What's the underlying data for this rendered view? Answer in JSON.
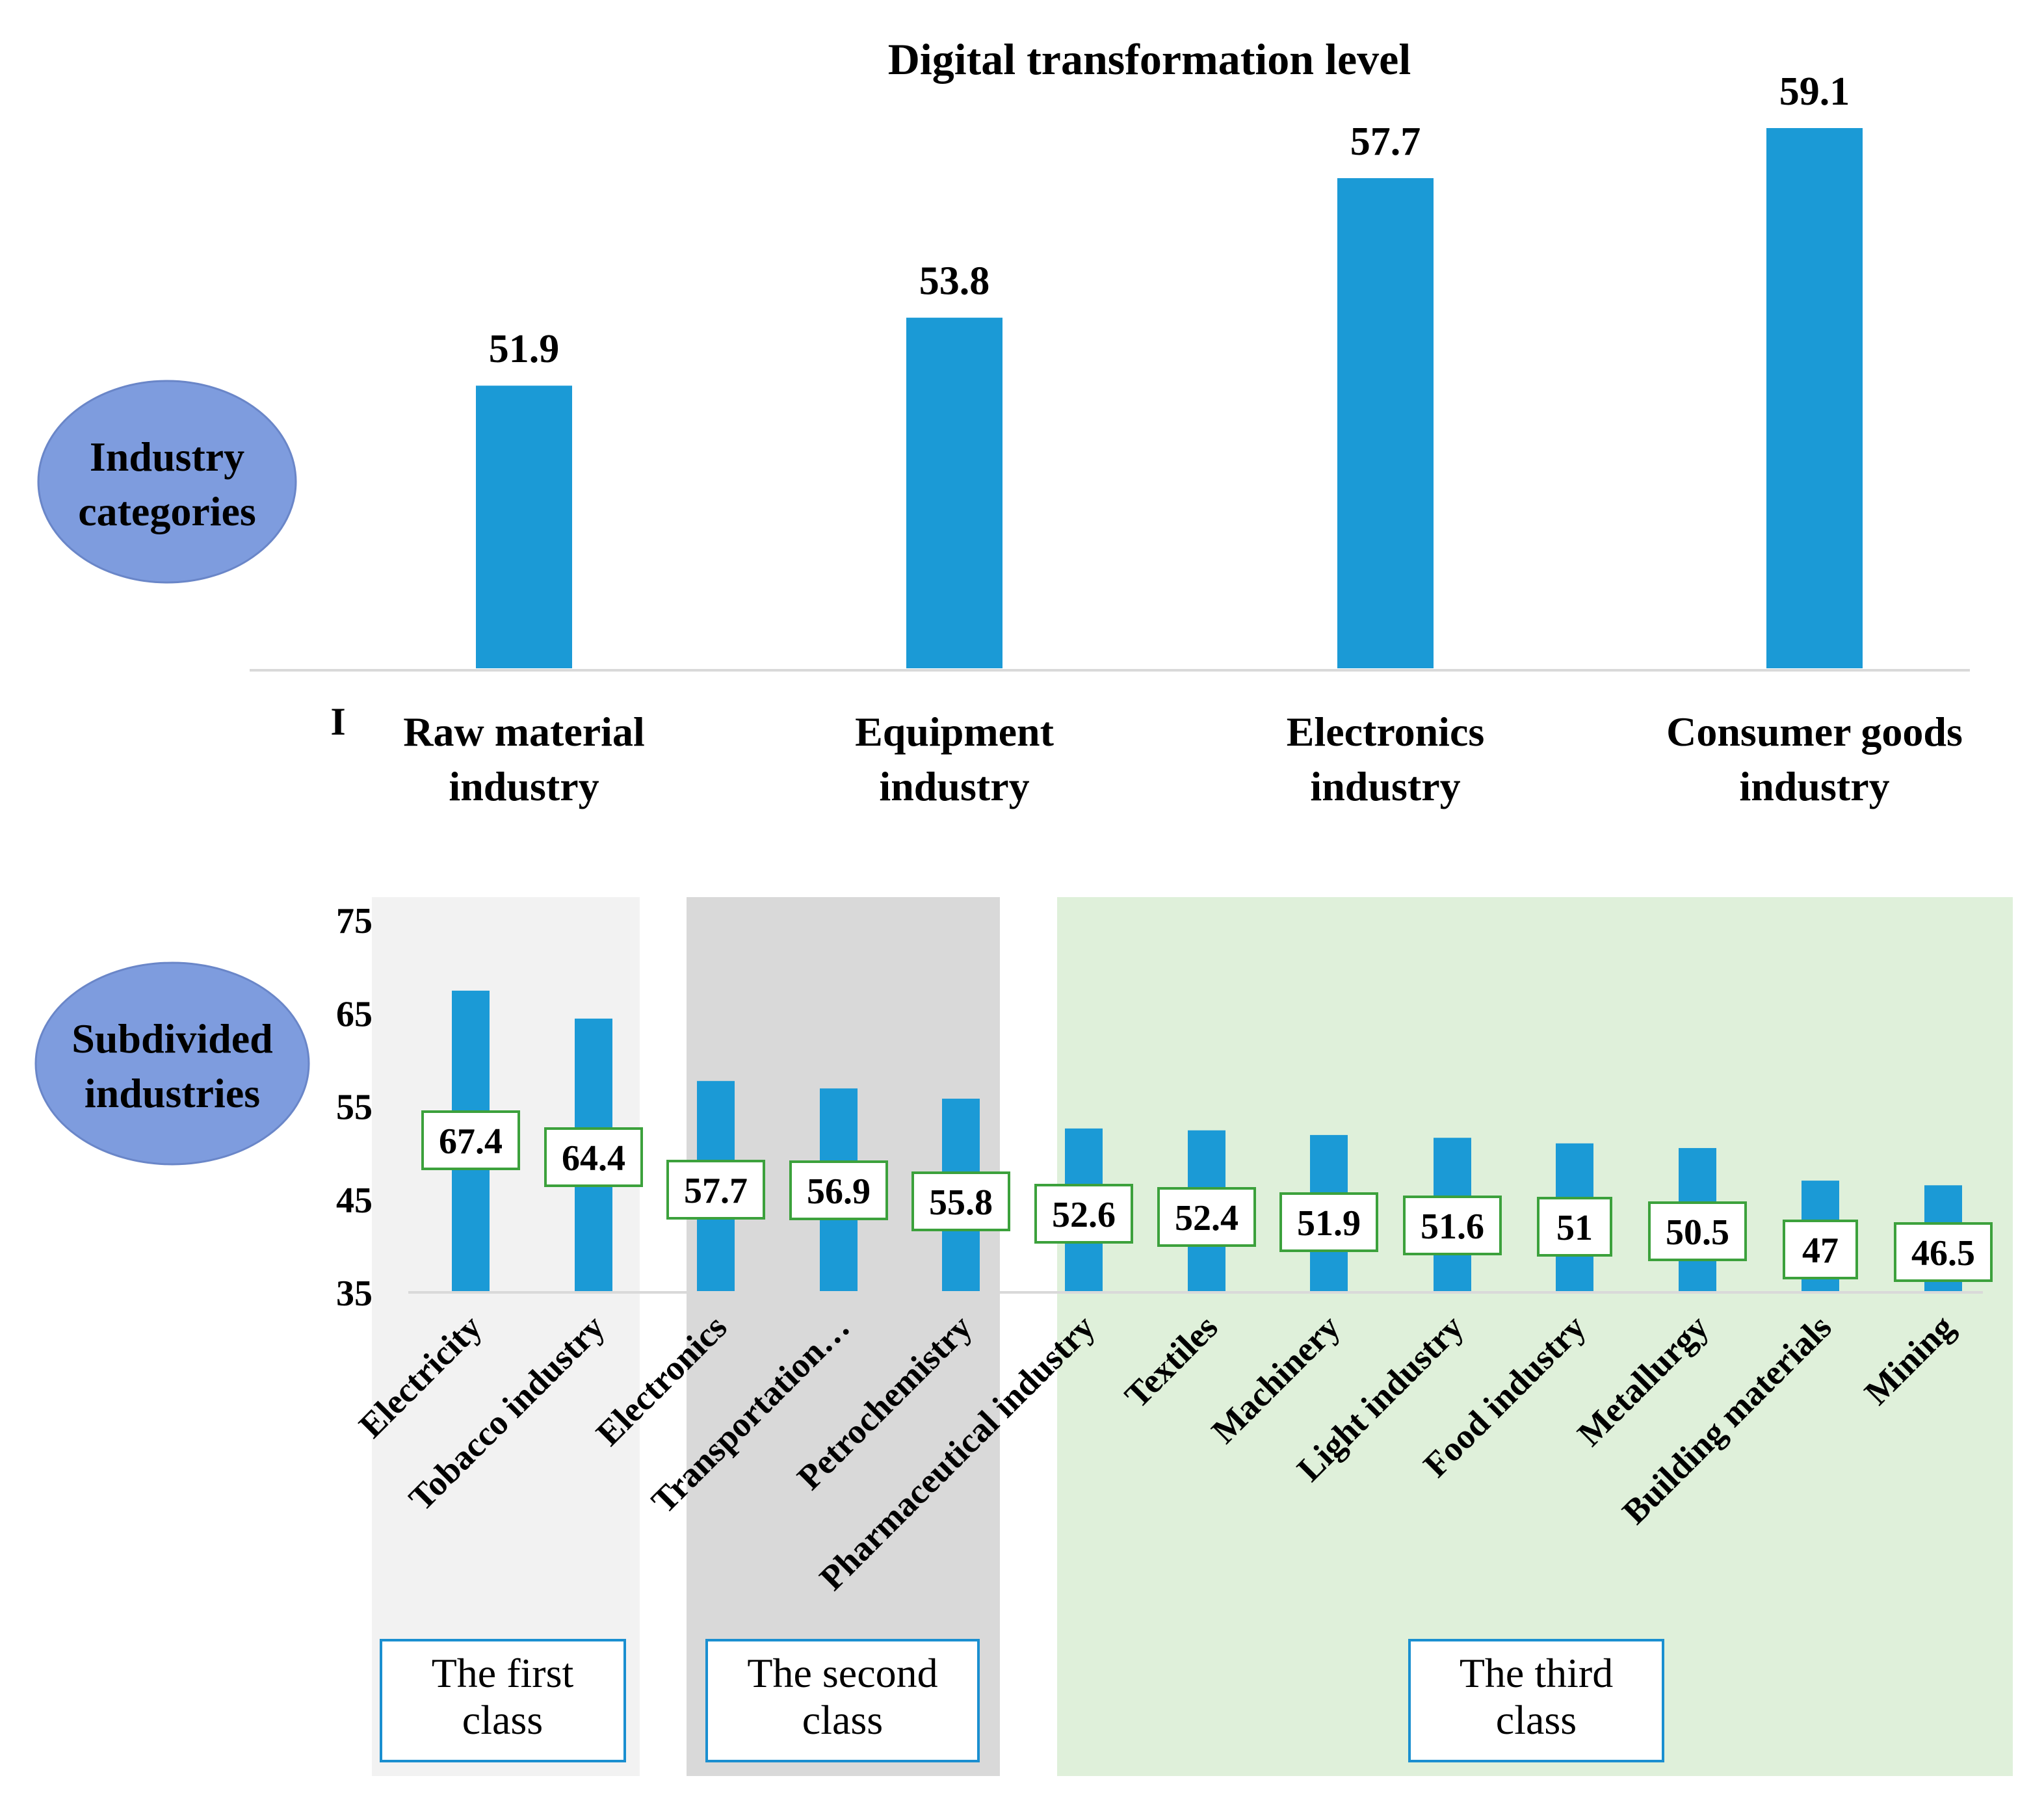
{
  "colors": {
    "bar": "#1B9AD6",
    "ellipse": "#7E9CDE",
    "class1_bg": "#F2F2F2",
    "class2_bg": "#D9D9D9",
    "class3_bg": "#DFF0DA",
    "label_border": "#3CA13C",
    "class_box_border": "#1A8FD0"
  },
  "chart_data": [
    {
      "type": "bar",
      "title": "Digital transformation  level",
      "side_label": "Industry categories",
      "axis_stray_tick": "I",
      "categories": [
        "Raw material industry",
        "Equipment industry",
        "Electronics industry",
        "Consumer goods industry"
      ],
      "values": [
        51.9,
        53.8,
        57.7,
        59.1
      ],
      "value_labels": [
        "51.9",
        "53.8",
        "57.7",
        "59.1"
      ],
      "ylim": [
        44,
        60
      ],
      "grid": false,
      "legend": "none"
    },
    {
      "type": "bar",
      "side_label": "Subdivided industries",
      "categories": [
        "Electricity",
        "Tobacco industry",
        "Electronics",
        "Transportation…",
        "Petrochemistry",
        "Pharmaceutical industry",
        "Textiles",
        "Machinery",
        "Light industry",
        "Food industry",
        "Metallurgy",
        "Building materials",
        "Mining"
      ],
      "values": [
        67.4,
        64.4,
        57.7,
        56.9,
        55.8,
        52.6,
        52.4,
        51.9,
        51.6,
        51,
        50.5,
        47,
        46.5
      ],
      "value_labels": [
        "67.4",
        "64.4",
        "57.7",
        "56.9",
        "55.8",
        "52.6",
        "52.4",
        "51.9",
        "51.6",
        "51",
        "50.5",
        "47",
        "46.5"
      ],
      "ylim": [
        35,
        75
      ],
      "yticks": [
        "75",
        "65",
        "55",
        "45",
        "35"
      ],
      "ytick_values": [
        75,
        65,
        55,
        45,
        35
      ],
      "grid": false,
      "legend": "none",
      "classes": [
        {
          "label": "The first class",
          "members": [
            "Electricity",
            "Tobacco industry"
          ]
        },
        {
          "label": "The second class",
          "members": [
            "Electronics",
            "Transportation…",
            "Petrochemistry"
          ]
        },
        {
          "label": "The third class",
          "members": [
            "Pharmaceutical industry",
            "Textiles",
            "Machinery",
            "Light industry",
            "Food industry",
            "Metallurgy",
            "Building materials",
            "Mining"
          ]
        }
      ]
    }
  ]
}
